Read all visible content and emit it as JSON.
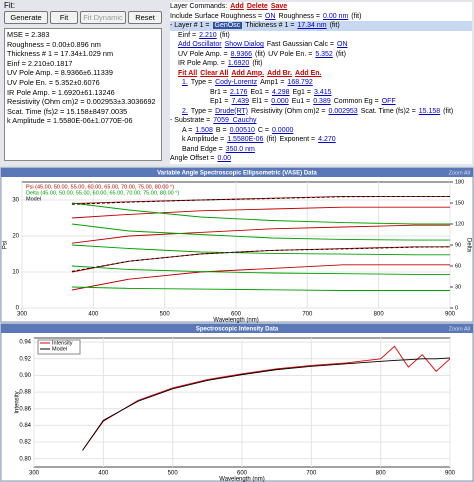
{
  "fit_panel": {
    "title": "Fit:",
    "buttons": [
      "Generate",
      "Fit",
      "Fit Dynamic",
      "Reset"
    ],
    "results": [
      "MSE = 2.383",
      "Roughness = 0.00±0.896 nm",
      "Thickness # 1 = 17.34±1.029 nm",
      "Einf = 2.210±0.1817",
      "UV Pole Amp. = 8.9366±6.11339",
      "UV Pole En. = 5.352±0.6076",
      "IR Pole Amp. = 1.6920±61.13246",
      "Resistivity (Ohm cm)2 = 0.002953±3.3036692",
      "Scat. Time (fs)2 = 15.158±8497.0035",
      "k Amplitude = 1.5580E-06±1.0770E-06"
    ]
  },
  "layer_panel": {
    "lines": [
      [
        "Layer Commands:",
        "Add",
        "Delete",
        "Save"
      ],
      [
        "Include Surface Roughness =",
        "ON",
        "Roughness =",
        "0.00 nm",
        "(fit)"
      ],
      [
        "- Layer # 1 =",
        "GenOsc",
        "Thickness # 1 =",
        "17.34 nm",
        "(fit)"
      ],
      [
        "Einf =",
        "2.210",
        "(fit)"
      ],
      [
        "Add Oscillator",
        "Show Dialog",
        "Fast Gaussian Calc =",
        "ON"
      ],
      [
        "UV Pole Amp. =",
        "8.9366",
        "(fit)",
        "UV Pole En. =",
        "5.352",
        "(fit)"
      ],
      [
        "IR Pole Amp. =",
        "1.6920",
        "(fit)"
      ],
      [
        "Fit All",
        "Clear All",
        "Add Amp.",
        "Add Br.",
        "Add En."
      ],
      [
        "1.",
        "Type =",
        "Cody-Lorentz",
        "Amp1 =",
        "168.792"
      ],
      [
        "Br1 =",
        "2.176",
        "Eo1 =",
        "4.298",
        "Eg1 =",
        "3.415"
      ],
      [
        "Ep1 =",
        "7.439",
        "El1 =",
        "0.000",
        "Eu1 =",
        "0.389",
        "Common Eg =",
        "OFF"
      ],
      [
        "2.",
        "Type =",
        "Drude(RT)",
        "Resistivity (Ohm cm)2 =",
        "0.002953",
        "Scat. Time (fs)2 =",
        "15.158",
        "(fit)"
      ],
      [
        "- Substrate =",
        "7059_Cauchy"
      ],
      [
        "A =",
        "1.508",
        "B =",
        "0.00510",
        "C =",
        "0.0000"
      ],
      [
        "k Amplitude =",
        "1.5580E-06",
        "(fit)",
        "Exponent =",
        "4.270"
      ],
      [
        "Band Edge =",
        "350.0 nm"
      ],
      [
        "Angle Offset =",
        "0.00"
      ]
    ]
  },
  "chart_data": [
    {
      "type": "line",
      "title": "Variable Angle Spectroscopic Ellipsometric (VASE) Data",
      "zoom_button": "Zoom All",
      "x_label": "Wavelength (nm)",
      "y_label": "Psi",
      "y2_label": "Delta",
      "x": [
        370,
        450,
        550,
        650,
        750,
        850,
        900
      ],
      "xlim": [
        300,
        900
      ],
      "xticks": [
        300,
        400,
        500,
        600,
        700,
        800,
        900
      ],
      "ylim": [
        0,
        35
      ],
      "yticks": [
        0,
        10,
        20,
        30
      ],
      "y2lim": [
        0,
        180
      ],
      "y2ticks": [
        0,
        30,
        60,
        90,
        120,
        150,
        180
      ],
      "series": [
        {
          "name": "Psi (45.00, 50.00, 55.00, 60.00, 65.00, 70.00, 75.00, 80.00 °)",
          "color": "#c00000",
          "curves": [
            [
              29,
              29.5,
              30,
              30.5,
              31,
              31,
              31
            ],
            [
              25,
              26,
              27,
              27.5,
              28,
              28,
              28
            ],
            [
              18,
              20,
              21,
              22,
              22.5,
              23,
              23
            ],
            [
              10,
              13,
              15,
              16,
              16.5,
              17,
              17
            ],
            [
              5,
              8,
              10,
              11,
              12,
              12,
              12
            ]
          ]
        },
        {
          "name": "Delta (45.00, 50.00, 55.00, 60.00, 65.00, 70.00, 75.00, 80.00 °)",
          "color": "#00a000",
          "axis": "y2",
          "curves": [
            [
              150,
              140,
              130,
              125,
              122,
              120,
              120
            ],
            [
              120,
              110,
              105,
              100,
              98,
              97,
              97
            ],
            [
              90,
              85,
              80,
              78,
              77,
              76,
              76
            ],
            [
              60,
              55,
              52,
              50,
              49,
              48,
              48
            ],
            [
              30,
              28,
              27,
              26,
              25,
              25,
              25
            ]
          ]
        },
        {
          "name": "Model",
          "color": "#000000",
          "dash": true,
          "curves": [
            [
              28.8,
              29.4,
              30,
              30.4,
              30.9,
              31,
              31
            ],
            [
              10.2,
              13,
              15,
              16,
              16.4,
              16.9,
              17
            ]
          ]
        }
      ]
    },
    {
      "type": "line",
      "title": "Spectroscopic Intensity Data",
      "zoom_button": "Zoom All",
      "x_label": "Wavelength (nm)",
      "y_label": "Intensity",
      "x": [
        370,
        400,
        450,
        500,
        550,
        600,
        650,
        700,
        750,
        800,
        820,
        840,
        860,
        880,
        900
      ],
      "xlim": [
        300,
        900
      ],
      "xticks": [
        300,
        400,
        500,
        600,
        700,
        800,
        900
      ],
      "ylim": [
        0.79,
        0.945
      ],
      "yticks": [
        {
          "value": 0.8,
          "label": "0.80"
        },
        {
          "value": 0.82,
          "label": "0.82"
        },
        {
          "value": 0.84,
          "label": "0.84"
        },
        {
          "value": 0.86,
          "label": "0.86"
        },
        {
          "value": 0.88,
          "label": "0.88"
        },
        {
          "value": 0.9,
          "label": "0.90"
        },
        {
          "value": 0.92,
          "label": "0.92"
        },
        {
          "value": 0.94,
          "label": "0.94"
        }
      ],
      "series": [
        {
          "name": "Intensity",
          "color": "#e00000",
          "values": [
            0.81,
            0.845,
            0.87,
            0.885,
            0.895,
            0.902,
            0.908,
            0.912,
            0.915,
            0.92,
            0.935,
            0.91,
            0.925,
            0.905,
            0.92
          ]
        },
        {
          "name": "Model",
          "color": "#000000",
          "values": [
            0.81,
            0.846,
            0.869,
            0.884,
            0.894,
            0.901,
            0.907,
            0.911,
            0.914,
            0.917,
            0.918,
            0.919,
            0.92,
            0.92,
            0.921
          ]
        }
      ]
    }
  ]
}
